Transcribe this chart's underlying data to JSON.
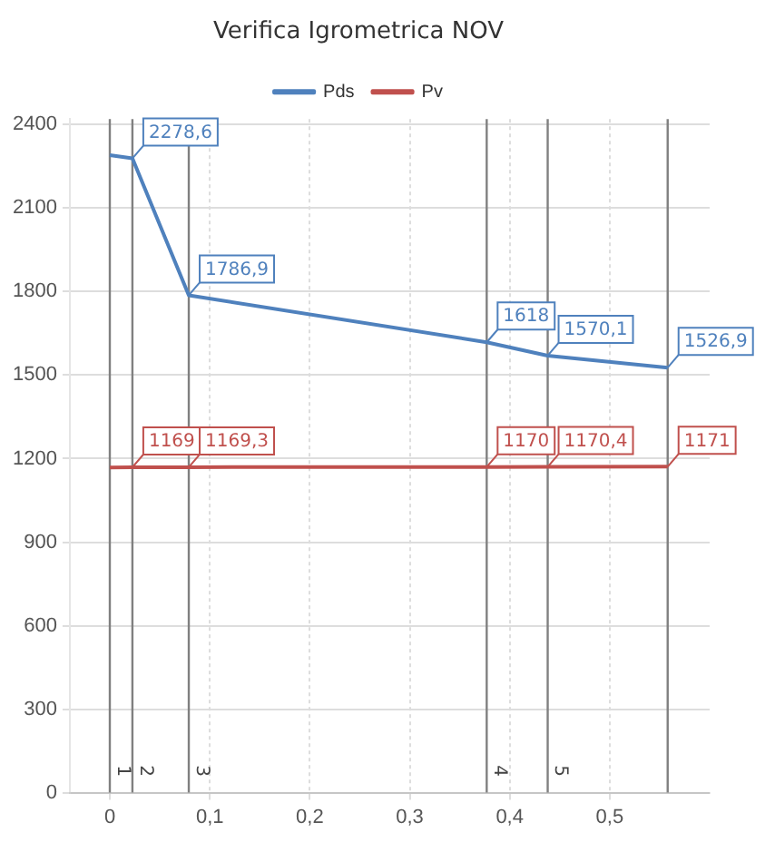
{
  "chart_data": {
    "type": "line",
    "title": "Verifica Igrometrica NOV",
    "x": [
      0,
      0.0226,
      0.079,
      0.377,
      0.438,
      0.558
    ],
    "series": [
      {
        "name": "Pds",
        "color": "#4f81bd",
        "values": [
          2290,
          2278.6,
          1786.9,
          1618,
          1570.1,
          1526.9
        ],
        "value_labels": [
          null,
          "2278,6",
          "1786,9",
          "1618",
          "1570,1",
          "1526,9"
        ]
      },
      {
        "name": "Pv",
        "color": "#c0504d",
        "values": [
          1168,
          1169,
          1169.3,
          1170,
          1170.4,
          1171
        ],
        "value_labels": [
          null,
          "1169",
          "1169,3",
          "1170",
          "1170,4",
          "1171"
        ]
      }
    ],
    "xlim": [
      -0.04,
      0.6
    ],
    "xticks": [
      0,
      {
        "value": 0.1,
        "label": "0,1"
      },
      {
        "value": 0.2,
        "label": "0,2"
      },
      {
        "value": 0.3,
        "label": "0,3"
      },
      {
        "value": 0.4,
        "label": "0,4"
      },
      {
        "value": 0.5,
        "label": "0,5"
      }
    ],
    "ylim": [
      0,
      2420
    ],
    "yticks": [
      0,
      300,
      600,
      900,
      1200,
      1500,
      1800,
      2100,
      2400
    ],
    "ref_lines": [
      {
        "axis": "x",
        "value": 0,
        "color": "#808080"
      },
      {
        "axis": "x",
        "value": 0.0226,
        "color": "#808080"
      },
      {
        "axis": "x",
        "value": 0.079,
        "color": "#808080"
      },
      {
        "axis": "x",
        "value": 0.377,
        "color": "#808080"
      },
      {
        "axis": "x",
        "value": 0.438,
        "color": "#808080"
      },
      {
        "axis": "x",
        "value": 0.558,
        "color": "#808080"
      }
    ],
    "annotations": [
      "1",
      "2",
      "3",
      "4",
      "5"
    ],
    "grid": true,
    "legend": "top",
    "marker": "none",
    "line_style": "solid"
  }
}
